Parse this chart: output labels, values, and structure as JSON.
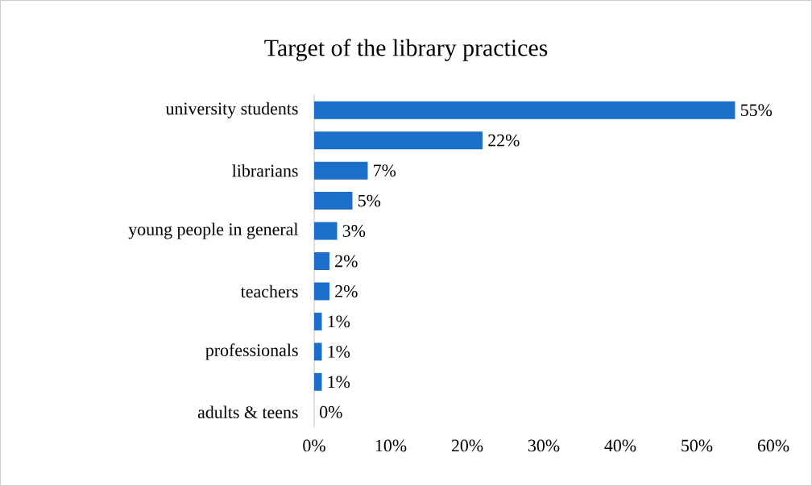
{
  "chart_data": {
    "type": "bar",
    "orientation": "horizontal",
    "title": "Target of the library practices",
    "categories": [
      "university students",
      null,
      "librarians",
      null,
      "young people in general",
      null,
      "teachers",
      null,
      "professionals",
      null,
      "adults & teens"
    ],
    "values": [
      55,
      22,
      7,
      5,
      3,
      2,
      2,
      1,
      1,
      1,
      0
    ],
    "value_labels": [
      "55%",
      "22%",
      "7%",
      "5%",
      "3%",
      "2%",
      "2%",
      "1%",
      "1%",
      "1%",
      "0%"
    ],
    "color": "#1c6fc8",
    "xlim": [
      0,
      60
    ],
    "xticks": [
      {
        "value": 0,
        "label": "0%"
      },
      {
        "value": 10,
        "label": "10%"
      },
      {
        "value": 20,
        "label": "20%"
      },
      {
        "value": 30,
        "label": "30%"
      },
      {
        "value": 40,
        "label": "40%"
      },
      {
        "value": 50,
        "label": "50%"
      },
      {
        "value": 60,
        "label": "60%"
      }
    ]
  }
}
